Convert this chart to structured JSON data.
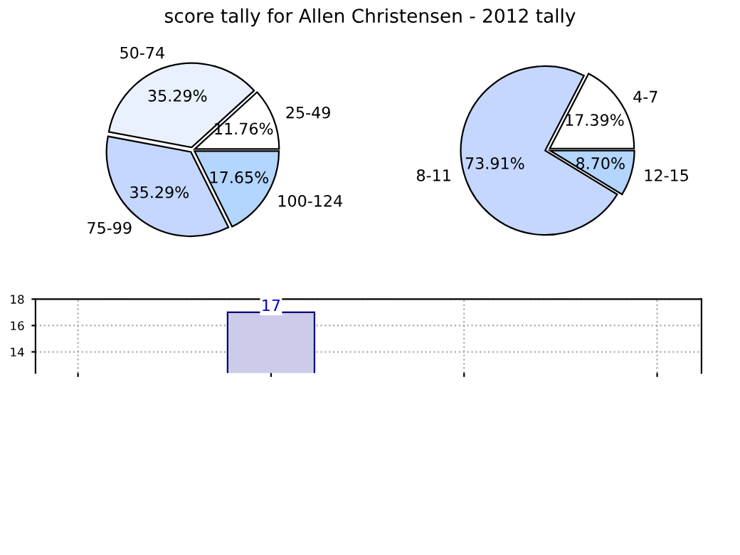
{
  "chart_data": [
    {
      "type": "pie",
      "title": "score tally for Allen Christensen - 2012 tally",
      "categories": [
        "25-49",
        "50-74",
        "75-99",
        "100-124"
      ],
      "values": [
        11.76,
        35.29,
        35.29,
        17.65
      ],
      "value_labels": [
        "11.76%",
        "35.29%",
        "35.29%",
        "17.65%"
      ],
      "colors": [
        "#ffffff",
        "#eaf1fe",
        "#c5d7fe",
        "#b3d5fe"
      ]
    },
    {
      "type": "pie",
      "categories": [
        "4-7",
        "8-11",
        "12-15"
      ],
      "values": [
        17.39,
        73.91,
        8.7
      ],
      "value_labels": [
        "17.39%",
        "73.91%",
        "8.70%"
      ],
      "colors": [
        "#ffffff",
        "#c5d7fe",
        "#b3d5fe"
      ]
    },
    {
      "type": "bar",
      "categories": [
        null,
        null,
        null,
        null
      ],
      "values": [
        null,
        17,
        null,
        null
      ],
      "color": "#ccccea",
      "ylim": [
        12.4,
        18
      ],
      "yticks": [
        14,
        16,
        18
      ],
      "grid": true,
      "data_labels": true
    }
  ]
}
